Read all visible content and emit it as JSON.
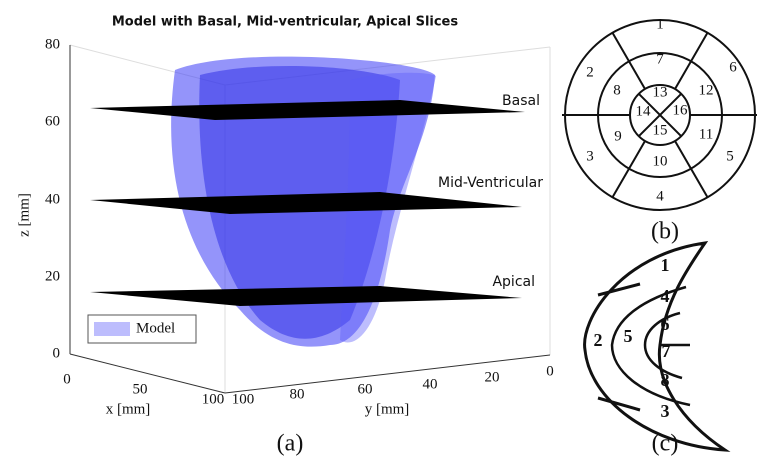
{
  "panel_a": {
    "title": "Model with Basal, Mid-ventricular, Apical Slices",
    "z_axis_label": "z [mm]",
    "x_axis_label": "x [mm]",
    "y_axis_label": "y [mm]",
    "z_ticks": [
      "0",
      "20",
      "40",
      "60",
      "80"
    ],
    "x_ticks": [
      "0",
      "50",
      "100"
    ],
    "y_ticks": [
      "100",
      "80",
      "60",
      "40",
      "20",
      "0"
    ],
    "slice_labels": [
      "Basal",
      "Mid-Ventricular",
      "Apical"
    ],
    "legend": "Model",
    "caption": "(a)"
  },
  "panel_b": {
    "segments": [
      "1",
      "2",
      "3",
      "4",
      "5",
      "6",
      "7",
      "8",
      "9",
      "10",
      "11",
      "12",
      "13",
      "14",
      "15",
      "16"
    ],
    "caption": "(b)"
  },
  "panel_c": {
    "segments": [
      "1",
      "2",
      "3",
      "4",
      "5",
      "6",
      "7",
      "8"
    ],
    "caption": "(c)"
  }
}
